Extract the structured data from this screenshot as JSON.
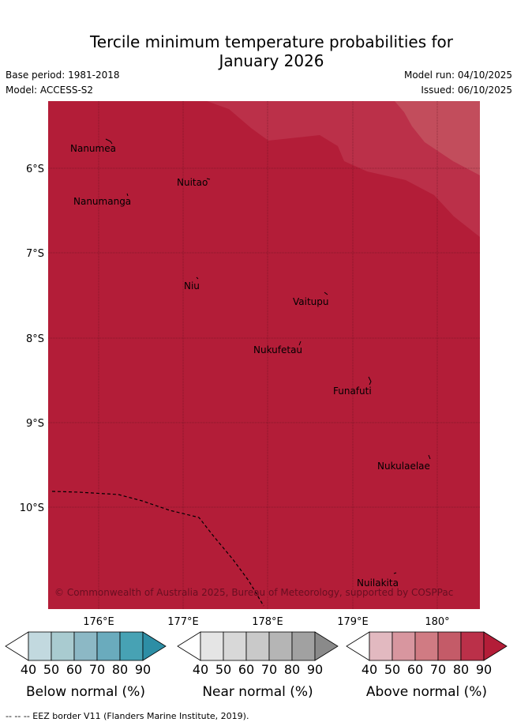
{
  "title_line1": "Tercile minimum temperature probabilities for",
  "title_line2": "January 2026",
  "meta": {
    "base_period": "Base period: 1981-2018",
    "model": "Model: ACCESS-S2",
    "model_run": "Model run: 04/10/2025",
    "issued": "Issued: 06/10/2025"
  },
  "map": {
    "lat_labels": [
      "6°S",
      "7°S",
      "8°S",
      "9°S",
      "10°S"
    ],
    "lon_labels": [
      "176°E",
      "177°E",
      "178°E",
      "179°E",
      "180°"
    ],
    "places": [
      "Nanumea",
      "Nuitao",
      "Nanumanga",
      "Niu",
      "Vaitupu",
      "Nukufetau",
      "Funafuti",
      "Nukulaelae",
      "Nuilakita"
    ],
    "copyright": "© Commonwealth of Australia 2025, Bureau of Meteorology, supported by COSPPac",
    "colors": {
      "above_90": "#b31d38",
      "above_80": "#bb3049",
      "above_70": "#c24d5c"
    }
  },
  "legends": [
    {
      "title": "Below normal (%)",
      "colors": [
        "#c2d9df",
        "#a9cbd0",
        "#8cb8c5",
        "#6aabbd",
        "#47a2b4",
        "#2d8ea5"
      ]
    },
    {
      "title": "Near normal (%)",
      "colors": [
        "#e5e5e5",
        "#d8d8d8",
        "#c9c9c9",
        "#b5b5b5",
        "#a1a1a1",
        "#8a8a8a"
      ]
    },
    {
      "title": "Above normal (%)",
      "colors": [
        "#e2b9c0",
        "#d8969f",
        "#d07b83",
        "#c45b68",
        "#bb3049",
        "#b31d38"
      ]
    }
  ],
  "legend_ticks": [
    "40",
    "50",
    "60",
    "70",
    "80",
    "90"
  ],
  "footer": "--  --  -- EEZ border V11 (Flanders Marine Institute, 2019)."
}
